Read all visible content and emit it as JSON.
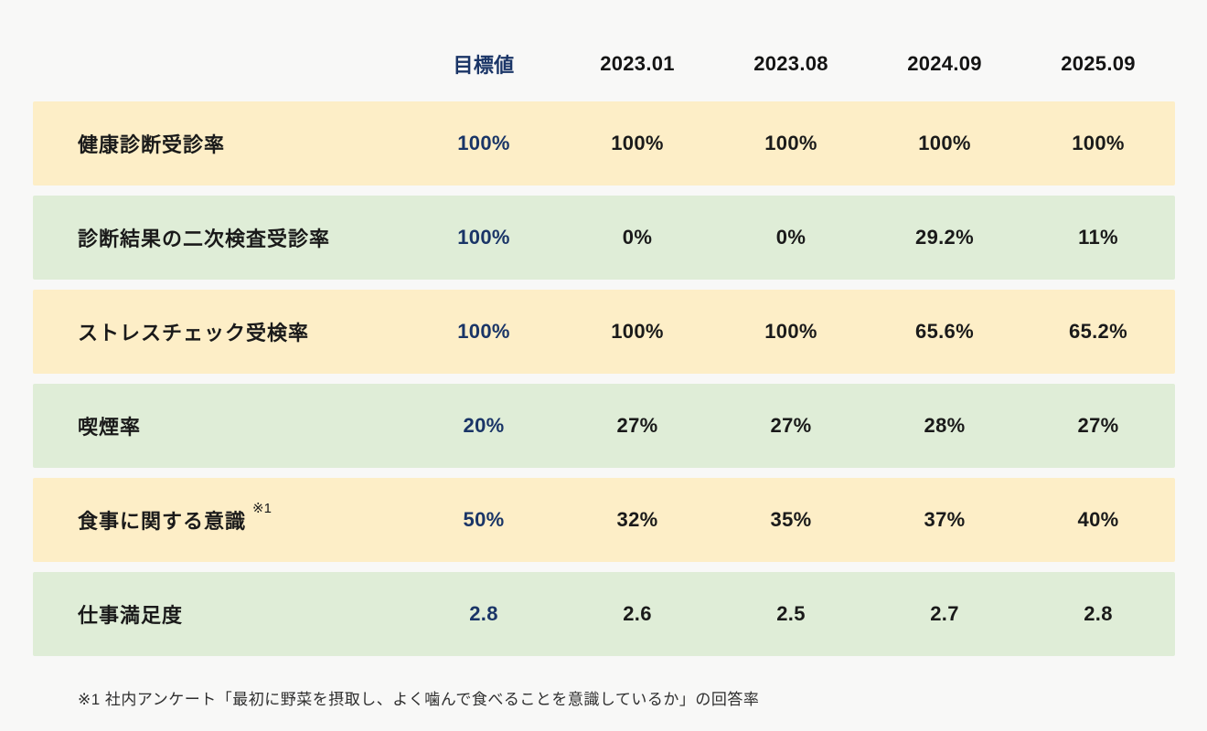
{
  "table": {
    "header": {
      "target_label": "目標値",
      "period_labels": [
        "2023.01",
        "2023.08",
        "2024.09",
        "2025.09"
      ]
    },
    "rows": [
      {
        "label": "健康診断受診率",
        "note": "",
        "target": "100%",
        "values": [
          "100%",
          "100%",
          "100%",
          "100%"
        ]
      },
      {
        "label": "診断結果の二次検査受診率",
        "note": "",
        "target": "100%",
        "values": [
          "0%",
          "0%",
          "29.2%",
          "11%"
        ]
      },
      {
        "label": "ストレスチェック受検率",
        "note": "",
        "target": "100%",
        "values": [
          "100%",
          "100%",
          "65.6%",
          "65.2%"
        ]
      },
      {
        "label": "喫煙率",
        "note": "",
        "target": "20%",
        "values": [
          "27%",
          "27%",
          "28%",
          "27%"
        ]
      },
      {
        "label": "食事に関する意識",
        "note": "※1",
        "target": "50%",
        "values": [
          "32%",
          "35%",
          "37%",
          "40%"
        ]
      },
      {
        "label": "仕事満足度",
        "note": "",
        "target": "2.8",
        "values": [
          "2.6",
          "2.5",
          "2.7",
          "2.8"
        ]
      }
    ],
    "footnote": "※1 社内アンケート「最初に野菜を摂取し、よく噛んで食べることを意識しているか」の回答率"
  },
  "colors": {
    "accent_navy": "#1a3567",
    "row_yellow": "#fdeec7",
    "row_green": "#dfedd7",
    "text_dark": "#1a1a1a",
    "page_background": "#f8f8f7"
  },
  "chart_data": {
    "type": "table",
    "columns": [
      "",
      "目標値",
      "2023.01",
      "2023.08",
      "2024.09",
      "2025.09"
    ],
    "rows": [
      [
        "健康診断受診率",
        "100%",
        "100%",
        "100%",
        "100%",
        "100%"
      ],
      [
        "診断結果の二次検査受診率",
        "100%",
        "0%",
        "0%",
        "29.2%",
        "11%"
      ],
      [
        "ストレスチェック受検率",
        "100%",
        "100%",
        "100%",
        "65.6%",
        "65.2%"
      ],
      [
        "喫煙率",
        "20%",
        "27%",
        "27%",
        "28%",
        "27%"
      ],
      [
        "食事に関する意識 ※1",
        "50%",
        "32%",
        "35%",
        "37%",
        "40%"
      ],
      [
        "仕事満足度",
        "2.8",
        "2.6",
        "2.5",
        "2.7",
        "2.8"
      ]
    ],
    "footnote": "※1 社内アンケート「最初に野菜を摂取し、よく噛んで食べることを意識しているか」の回答率"
  }
}
